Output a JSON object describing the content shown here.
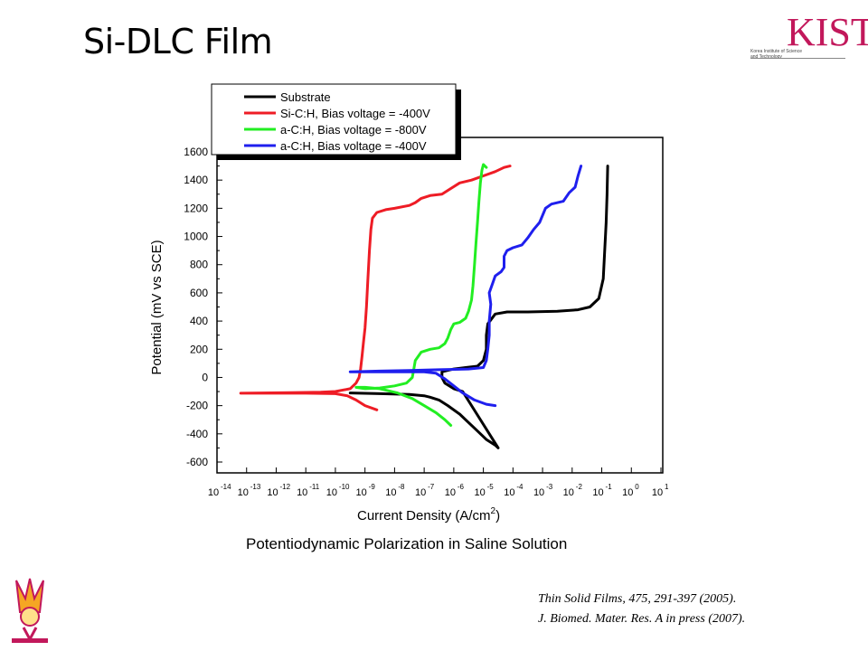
{
  "slide": {
    "title": "Si-DLC Film",
    "caption": "Potentiodynamic Polarization in Saline Solution",
    "citations": [
      "Thin Solid Films, 475, 291-397 (2005).",
      "J.  Biomed.  Mater. Res. A   in press  (2007)."
    ],
    "logo_text": "KIST",
    "logo_subtitle": "Korea Institute of Science and Technology",
    "accent_color": "#c2185b"
  },
  "chart_data": {
    "type": "line",
    "xlabel": "Current Density (A/cm",
    "xlabel_sup": "2",
    "xlabel_tail": ")",
    "ylabel": "Potential (mV vs SCE)",
    "x_scale": "log",
    "xlim": [
      -14,
      1
    ],
    "ylim": [
      -700,
      1700
    ],
    "x_ticks_exp": [
      "-14",
      "-13",
      "-12",
      "-11",
      "-10",
      "-9",
      "-8",
      "-7",
      "-6",
      "-5",
      "-4",
      "-3",
      "-2",
      "-1",
      "0",
      "1"
    ],
    "y_ticks": [
      "1600",
      "1400",
      "1200",
      "1000",
      "800",
      "600",
      "400",
      "200",
      "0",
      "-200",
      "-400",
      "-600"
    ],
    "y_tick_values": [
      1600,
      1400,
      1200,
      1000,
      800,
      600,
      400,
      200,
      0,
      -200,
      -400,
      -600
    ],
    "grid": false,
    "legend_position": "top-left",
    "series": [
      {
        "name": "Substrate",
        "color": "#000000",
        "points": [
          [
            -9.5,
            -110
          ],
          [
            -8.5,
            -115
          ],
          [
            -7.5,
            -120
          ],
          [
            -7,
            -130
          ],
          [
            -6.8,
            -140
          ],
          [
            -6.5,
            -160
          ],
          [
            -6.2,
            -200
          ],
          [
            -5.8,
            -260
          ],
          [
            -5.5,
            -320
          ],
          [
            -5.2,
            -380
          ],
          [
            -4.9,
            -440
          ],
          [
            -4.6,
            -480
          ],
          [
            -4.5,
            -500
          ],
          [
            -5.7,
            -100
          ],
          [
            -6.0,
            -80
          ],
          [
            -6.3,
            -40
          ],
          [
            -6.4,
            0
          ],
          [
            -6.4,
            40
          ],
          [
            -6.0,
            60
          ],
          [
            -5.6,
            70
          ],
          [
            -5.2,
            80
          ],
          [
            -5.0,
            120
          ],
          [
            -4.9,
            200
          ],
          [
            -4.9,
            300
          ],
          [
            -4.85,
            380
          ],
          [
            -4.6,
            450
          ],
          [
            -4.2,
            465
          ],
          [
            -3.5,
            465
          ],
          [
            -2.5,
            470
          ],
          [
            -1.8,
            480
          ],
          [
            -1.4,
            500
          ],
          [
            -1.1,
            560
          ],
          [
            -0.95,
            700
          ],
          [
            -0.9,
            900
          ],
          [
            -0.85,
            1100
          ],
          [
            -0.82,
            1300
          ],
          [
            -0.8,
            1500
          ]
        ]
      },
      {
        "name": "Si-C:H, Bias voltage = -400V",
        "color": "#ee1c25",
        "points": [
          [
            -8.6,
            -230
          ],
          [
            -9.0,
            -200
          ],
          [
            -9.3,
            -160
          ],
          [
            -9.6,
            -130
          ],
          [
            -10.0,
            -115
          ],
          [
            -11.0,
            -112
          ],
          [
            -12.0,
            -112
          ],
          [
            -13.0,
            -112
          ],
          [
            -13.2,
            -112
          ],
          [
            -12.5,
            -110
          ],
          [
            -11.5,
            -108
          ],
          [
            -10.5,
            -105
          ],
          [
            -10.0,
            -100
          ],
          [
            -9.5,
            -80
          ],
          [
            -9.3,
            -40
          ],
          [
            -9.2,
            0
          ],
          [
            -9.15,
            60
          ],
          [
            -9.1,
            150
          ],
          [
            -9.05,
            250
          ],
          [
            -9.0,
            350
          ],
          [
            -8.95,
            500
          ],
          [
            -8.9,
            700
          ],
          [
            -8.85,
            900
          ],
          [
            -8.8,
            1050
          ],
          [
            -8.75,
            1130
          ],
          [
            -8.6,
            1170
          ],
          [
            -8.3,
            1190
          ],
          [
            -8.0,
            1200
          ],
          [
            -7.5,
            1220
          ],
          [
            -7.3,
            1240
          ],
          [
            -7.1,
            1270
          ],
          [
            -6.8,
            1290
          ],
          [
            -6.4,
            1300
          ],
          [
            -6.1,
            1340
          ],
          [
            -5.8,
            1380
          ],
          [
            -5.4,
            1400
          ],
          [
            -5.0,
            1430
          ],
          [
            -4.6,
            1460
          ],
          [
            -4.3,
            1490
          ],
          [
            -4.1,
            1500
          ]
        ]
      },
      {
        "name": "a-C:H, Bias voltage = -800V",
        "color": "#22ee22",
        "points": [
          [
            -6.1,
            -340
          ],
          [
            -6.3,
            -300
          ],
          [
            -6.6,
            -250
          ],
          [
            -7.0,
            -200
          ],
          [
            -7.4,
            -150
          ],
          [
            -7.9,
            -110
          ],
          [
            -8.5,
            -80
          ],
          [
            -9.0,
            -70
          ],
          [
            -9.3,
            -70
          ],
          [
            -9.0,
            -80
          ],
          [
            -8.5,
            -75
          ],
          [
            -8.0,
            -60
          ],
          [
            -7.6,
            -40
          ],
          [
            -7.4,
            0
          ],
          [
            -7.35,
            60
          ],
          [
            -7.3,
            120
          ],
          [
            -7.1,
            180
          ],
          [
            -6.8,
            200
          ],
          [
            -6.5,
            210
          ],
          [
            -6.3,
            240
          ],
          [
            -6.2,
            280
          ],
          [
            -6.1,
            340
          ],
          [
            -6.0,
            380
          ],
          [
            -5.8,
            390
          ],
          [
            -5.6,
            420
          ],
          [
            -5.5,
            470
          ],
          [
            -5.4,
            550
          ],
          [
            -5.35,
            650
          ],
          [
            -5.3,
            800
          ],
          [
            -5.25,
            950
          ],
          [
            -5.2,
            1100
          ],
          [
            -5.15,
            1250
          ],
          [
            -5.1,
            1380
          ],
          [
            -5.05,
            1470
          ],
          [
            -5.0,
            1510
          ],
          [
            -4.9,
            1490
          ]
        ]
      },
      {
        "name": "a-C:H, Bias voltage = -400V",
        "color": "#1f1fee",
        "points": [
          [
            -4.6,
            -200
          ],
          [
            -4.9,
            -190
          ],
          [
            -5.3,
            -160
          ],
          [
            -5.7,
            -110
          ],
          [
            -6.0,
            -60
          ],
          [
            -6.3,
            -10
          ],
          [
            -6.6,
            30
          ],
          [
            -7.0,
            40
          ],
          [
            -8.0,
            40
          ],
          [
            -9.0,
            40
          ],
          [
            -9.5,
            40
          ],
          [
            -8.5,
            45
          ],
          [
            -7.5,
            50
          ],
          [
            -6.5,
            55
          ],
          [
            -5.5,
            60
          ],
          [
            -5.0,
            70
          ],
          [
            -4.9,
            120
          ],
          [
            -4.85,
            200
          ],
          [
            -4.8,
            300
          ],
          [
            -4.8,
            400
          ],
          [
            -4.75,
            520
          ],
          [
            -4.8,
            600
          ],
          [
            -4.7,
            660
          ],
          [
            -4.6,
            720
          ],
          [
            -4.4,
            750
          ],
          [
            -4.3,
            780
          ],
          [
            -4.3,
            860
          ],
          [
            -4.2,
            900
          ],
          [
            -4.0,
            920
          ],
          [
            -3.7,
            940
          ],
          [
            -3.5,
            990
          ],
          [
            -3.3,
            1050
          ],
          [
            -3.1,
            1100
          ],
          [
            -2.9,
            1200
          ],
          [
            -2.7,
            1230
          ],
          [
            -2.3,
            1250
          ],
          [
            -2.1,
            1310
          ],
          [
            -1.9,
            1350
          ],
          [
            -1.8,
            1430
          ],
          [
            -1.7,
            1500
          ]
        ]
      }
    ]
  }
}
